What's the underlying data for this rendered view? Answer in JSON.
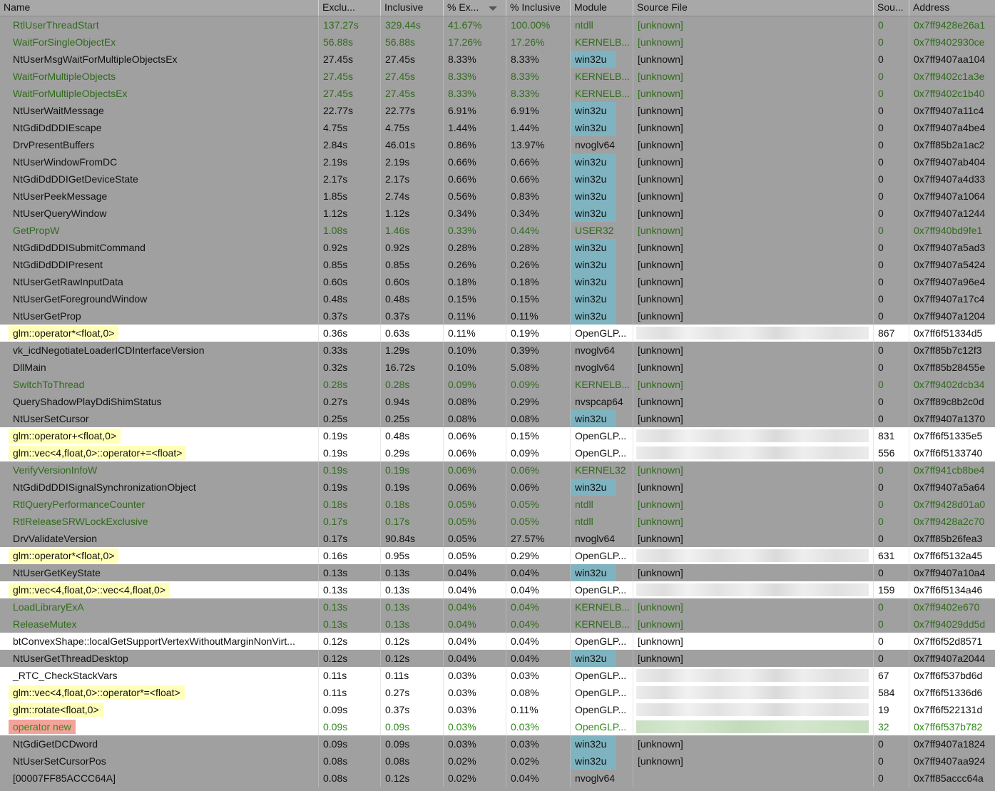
{
  "columns": [
    "Name",
    "Exclu...",
    "Inclusive",
    "% Ex...",
    "% Inclusive",
    "Module",
    "Source File",
    "Sou...",
    "Address"
  ],
  "sorted_column": "% Ex...",
  "colors": {
    "dark_row": "#a0a0a0",
    "light_row": "#ffffff",
    "green_text": "#2f6b1a",
    "yellow_highlight": "#ffffb8",
    "red_highlight": "#f3a39a",
    "module_highlight": "#7fb3c0"
  },
  "rows": [
    {
      "name": "RtlUserThreadStart",
      "excl": "137.27s",
      "incl": "329.44s",
      "pex": "41.67%",
      "pinc": "100.00%",
      "module": "ntdll",
      "src": "[unknown]",
      "sou": "0",
      "addr": "0x7ff9428e26a1",
      "green": true,
      "light": false,
      "hl": "",
      "modhl": false
    },
    {
      "name": "WaitForSingleObjectEx",
      "excl": "56.88s",
      "incl": "56.88s",
      "pex": "17.26%",
      "pinc": "17.26%",
      "module": "KERNELB...",
      "src": "[unknown]",
      "sou": "0",
      "addr": "0x7ff9402930ce",
      "green": true,
      "light": false,
      "hl": "",
      "modhl": false
    },
    {
      "name": "NtUserMsgWaitForMultipleObjectsEx",
      "excl": "27.45s",
      "incl": "27.45s",
      "pex": "8.33%",
      "pinc": "8.33%",
      "module": "win32u",
      "src": "[unknown]",
      "sou": "0",
      "addr": "0x7ff9407aa104",
      "green": false,
      "light": false,
      "hl": "",
      "modhl": true
    },
    {
      "name": "WaitForMultipleObjects",
      "excl": "27.45s",
      "incl": "27.45s",
      "pex": "8.33%",
      "pinc": "8.33%",
      "module": "KERNELB...",
      "src": "[unknown]",
      "sou": "0",
      "addr": "0x7ff9402c1a3e",
      "green": true,
      "light": false,
      "hl": "",
      "modhl": false
    },
    {
      "name": "WaitForMultipleObjectsEx",
      "excl": "27.45s",
      "incl": "27.45s",
      "pex": "8.33%",
      "pinc": "8.33%",
      "module": "KERNELB...",
      "src": "[unknown]",
      "sou": "0",
      "addr": "0x7ff9402c1b40",
      "green": true,
      "light": false,
      "hl": "",
      "modhl": false
    },
    {
      "name": "NtUserWaitMessage",
      "excl": "22.77s",
      "incl": "22.77s",
      "pex": "6.91%",
      "pinc": "6.91%",
      "module": "win32u",
      "src": "[unknown]",
      "sou": "0",
      "addr": "0x7ff9407a11c4",
      "green": false,
      "light": false,
      "hl": "",
      "modhl": true
    },
    {
      "name": "NtGdiDdDDIEscape",
      "excl": "4.75s",
      "incl": "4.75s",
      "pex": "1.44%",
      "pinc": "1.44%",
      "module": "win32u",
      "src": "[unknown]",
      "sou": "0",
      "addr": "0x7ff9407a4be4",
      "green": false,
      "light": false,
      "hl": "",
      "modhl": true
    },
    {
      "name": "DrvPresentBuffers",
      "excl": "2.84s",
      "incl": "46.01s",
      "pex": "0.86%",
      "pinc": "13.97%",
      "module": "nvoglv64",
      "src": "[unknown]",
      "sou": "0",
      "addr": "0x7ff85b2a1ac2",
      "green": false,
      "light": false,
      "hl": "",
      "modhl": false
    },
    {
      "name": "NtUserWindowFromDC",
      "excl": "2.19s",
      "incl": "2.19s",
      "pex": "0.66%",
      "pinc": "0.66%",
      "module": "win32u",
      "src": "[unknown]",
      "sou": "0",
      "addr": "0x7ff9407ab404",
      "green": false,
      "light": false,
      "hl": "",
      "modhl": true
    },
    {
      "name": "NtGdiDdDDIGetDeviceState",
      "excl": "2.17s",
      "incl": "2.17s",
      "pex": "0.66%",
      "pinc": "0.66%",
      "module": "win32u",
      "src": "[unknown]",
      "sou": "0",
      "addr": "0x7ff9407a4d33",
      "green": false,
      "light": false,
      "hl": "",
      "modhl": true
    },
    {
      "name": "NtUserPeekMessage",
      "excl": "1.85s",
      "incl": "2.74s",
      "pex": "0.56%",
      "pinc": "0.83%",
      "module": "win32u",
      "src": "[unknown]",
      "sou": "0",
      "addr": "0x7ff9407a1064",
      "green": false,
      "light": false,
      "hl": "",
      "modhl": true
    },
    {
      "name": "NtUserQueryWindow",
      "excl": "1.12s",
      "incl": "1.12s",
      "pex": "0.34%",
      "pinc": "0.34%",
      "module": "win32u",
      "src": "[unknown]",
      "sou": "0",
      "addr": "0x7ff9407a1244",
      "green": false,
      "light": false,
      "hl": "",
      "modhl": true
    },
    {
      "name": "GetPropW",
      "excl": "1.08s",
      "incl": "1.46s",
      "pex": "0.33%",
      "pinc": "0.44%",
      "module": "USER32",
      "src": "[unknown]",
      "sou": "0",
      "addr": "0x7ff940bd9fe1",
      "green": true,
      "light": false,
      "hl": "",
      "modhl": false
    },
    {
      "name": "NtGdiDdDDISubmitCommand",
      "excl": "0.92s",
      "incl": "0.92s",
      "pex": "0.28%",
      "pinc": "0.28%",
      "module": "win32u",
      "src": "[unknown]",
      "sou": "0",
      "addr": "0x7ff9407a5ad3",
      "green": false,
      "light": false,
      "hl": "",
      "modhl": true
    },
    {
      "name": "NtGdiDdDDIPresent",
      "excl": "0.85s",
      "incl": "0.85s",
      "pex": "0.26%",
      "pinc": "0.26%",
      "module": "win32u",
      "src": "[unknown]",
      "sou": "0",
      "addr": "0x7ff9407a5424",
      "green": false,
      "light": false,
      "hl": "",
      "modhl": true
    },
    {
      "name": "NtUserGetRawInputData",
      "excl": "0.60s",
      "incl": "0.60s",
      "pex": "0.18%",
      "pinc": "0.18%",
      "module": "win32u",
      "src": "[unknown]",
      "sou": "0",
      "addr": "0x7ff9407a96e4",
      "green": false,
      "light": false,
      "hl": "",
      "modhl": true
    },
    {
      "name": "NtUserGetForegroundWindow",
      "excl": "0.48s",
      "incl": "0.48s",
      "pex": "0.15%",
      "pinc": "0.15%",
      "module": "win32u",
      "src": "[unknown]",
      "sou": "0",
      "addr": "0x7ff9407a17c4",
      "green": false,
      "light": false,
      "hl": "",
      "modhl": true
    },
    {
      "name": "NtUserGetProp",
      "excl": "0.37s",
      "incl": "0.37s",
      "pex": "0.11%",
      "pinc": "0.11%",
      "module": "win32u",
      "src": "[unknown]",
      "sou": "0",
      "addr": "0x7ff9407a1204",
      "green": false,
      "light": false,
      "hl": "",
      "modhl": true
    },
    {
      "name": "glm::operator*<float,0>",
      "excl": "0.36s",
      "incl": "0.63s",
      "pex": "0.11%",
      "pinc": "0.19%",
      "module": "OpenGLP...",
      "src": "",
      "sou": "867",
      "addr": "0x7ff6f51334d5",
      "green": false,
      "light": true,
      "hl": "yellow",
      "modhl": false,
      "blur": "gray"
    },
    {
      "name": "vk_icdNegotiateLoaderICDInterfaceVersion",
      "excl": "0.33s",
      "incl": "1.29s",
      "pex": "0.10%",
      "pinc": "0.39%",
      "module": "nvoglv64",
      "src": "[unknown]",
      "sou": "0",
      "addr": "0x7ff85b7c12f3",
      "green": false,
      "light": false,
      "hl": "",
      "modhl": false
    },
    {
      "name": "DllMain",
      "excl": "0.32s",
      "incl": "16.72s",
      "pex": "0.10%",
      "pinc": "5.08%",
      "module": "nvoglv64",
      "src": "[unknown]",
      "sou": "0",
      "addr": "0x7ff85b28455e",
      "green": false,
      "light": false,
      "hl": "",
      "modhl": false
    },
    {
      "name": "SwitchToThread",
      "excl": "0.28s",
      "incl": "0.28s",
      "pex": "0.09%",
      "pinc": "0.09%",
      "module": "KERNELB...",
      "src": "[unknown]",
      "sou": "0",
      "addr": "0x7ff9402dcb34",
      "green": true,
      "light": false,
      "hl": "",
      "modhl": false
    },
    {
      "name": "QueryShadowPlayDdiShimStatus",
      "excl": "0.27s",
      "incl": "0.94s",
      "pex": "0.08%",
      "pinc": "0.29%",
      "module": "nvspcap64",
      "src": "[unknown]",
      "sou": "0",
      "addr": "0x7ff89c8b2c0d",
      "green": false,
      "light": false,
      "hl": "",
      "modhl": false
    },
    {
      "name": "NtUserSetCursor",
      "excl": "0.25s",
      "incl": "0.25s",
      "pex": "0.08%",
      "pinc": "0.08%",
      "module": "win32u",
      "src": "[unknown]",
      "sou": "0",
      "addr": "0x7ff9407a1370",
      "green": false,
      "light": false,
      "hl": "",
      "modhl": true
    },
    {
      "name": "glm::operator+<float,0>",
      "excl": "0.19s",
      "incl": "0.48s",
      "pex": "0.06%",
      "pinc": "0.15%",
      "module": "OpenGLP...",
      "src": "",
      "sou": "831",
      "addr": "0x7ff6f51335e5",
      "green": false,
      "light": true,
      "hl": "yellow",
      "modhl": false,
      "blur": "gray"
    },
    {
      "name": "glm::vec<4,float,0>::operator+=<float>",
      "excl": "0.19s",
      "incl": "0.29s",
      "pex": "0.06%",
      "pinc": "0.09%",
      "module": "OpenGLP...",
      "src": "",
      "sou": "556",
      "addr": "0x7ff6f5133740",
      "green": false,
      "light": true,
      "hl": "yellow",
      "modhl": false,
      "blur": "gray"
    },
    {
      "name": "VerifyVersionInfoW",
      "excl": "0.19s",
      "incl": "0.19s",
      "pex": "0.06%",
      "pinc": "0.06%",
      "module": "KERNEL32",
      "src": "[unknown]",
      "sou": "0",
      "addr": "0x7ff941cb8be4",
      "green": true,
      "light": false,
      "hl": "",
      "modhl": false
    },
    {
      "name": "NtGdiDdDDISignalSynchronizationObject",
      "excl": "0.19s",
      "incl": "0.19s",
      "pex": "0.06%",
      "pinc": "0.06%",
      "module": "win32u",
      "src": "[unknown]",
      "sou": "0",
      "addr": "0x7ff9407a5a64",
      "green": false,
      "light": false,
      "hl": "",
      "modhl": true
    },
    {
      "name": "RtlQueryPerformanceCounter",
      "excl": "0.18s",
      "incl": "0.18s",
      "pex": "0.05%",
      "pinc": "0.05%",
      "module": "ntdll",
      "src": "[unknown]",
      "sou": "0",
      "addr": "0x7ff9428d01a0",
      "green": true,
      "light": false,
      "hl": "",
      "modhl": false
    },
    {
      "name": "RtlReleaseSRWLockExclusive",
      "excl": "0.17s",
      "incl": "0.17s",
      "pex": "0.05%",
      "pinc": "0.05%",
      "module": "ntdll",
      "src": "[unknown]",
      "sou": "0",
      "addr": "0x7ff9428a2c70",
      "green": true,
      "light": false,
      "hl": "",
      "modhl": false
    },
    {
      "name": "DrvValidateVersion",
      "excl": "0.17s",
      "incl": "90.84s",
      "pex": "0.05%",
      "pinc": "27.57%",
      "module": "nvoglv64",
      "src": "[unknown]",
      "sou": "0",
      "addr": "0x7ff85b26fea3",
      "green": false,
      "light": false,
      "hl": "",
      "modhl": false
    },
    {
      "name": "glm::operator*<float,0>",
      "excl": "0.16s",
      "incl": "0.95s",
      "pex": "0.05%",
      "pinc": "0.29%",
      "module": "OpenGLP...",
      "src": "",
      "sou": "631",
      "addr": "0x7ff6f5132a45",
      "green": false,
      "light": true,
      "hl": "yellow",
      "modhl": false,
      "blur": "gray"
    },
    {
      "name": "NtUserGetKeyState",
      "excl": "0.13s",
      "incl": "0.13s",
      "pex": "0.04%",
      "pinc": "0.04%",
      "module": "win32u",
      "src": "[unknown]",
      "sou": "0",
      "addr": "0x7ff9407a10a4",
      "green": false,
      "light": false,
      "hl": "",
      "modhl": true
    },
    {
      "name": "glm::vec<4,float,0>::vec<4,float,0>",
      "excl": "0.13s",
      "incl": "0.13s",
      "pex": "0.04%",
      "pinc": "0.04%",
      "module": "OpenGLP...",
      "src": "",
      "sou": "159",
      "addr": "0x7ff6f5134a46",
      "green": false,
      "light": true,
      "hl": "yellow",
      "modhl": false,
      "blur": "gray"
    },
    {
      "name": "LoadLibraryExA",
      "excl": "0.13s",
      "incl": "0.13s",
      "pex": "0.04%",
      "pinc": "0.04%",
      "module": "KERNELB...",
      "src": "[unknown]",
      "sou": "0",
      "addr": "0x7ff9402e670",
      "green": true,
      "light": false,
      "hl": "",
      "modhl": false
    },
    {
      "name": "ReleaseMutex",
      "excl": "0.13s",
      "incl": "0.13s",
      "pex": "0.04%",
      "pinc": "0.04%",
      "module": "KERNELB...",
      "src": "[unknown]",
      "sou": "0",
      "addr": "0x7ff94029dd5d",
      "green": true,
      "light": false,
      "hl": "",
      "modhl": false
    },
    {
      "name": "btConvexShape::localGetSupportVertexWithoutMarginNonVirt...",
      "excl": "0.12s",
      "incl": "0.12s",
      "pex": "0.04%",
      "pinc": "0.04%",
      "module": "OpenGLP...",
      "src": "[unknown]",
      "sou": "0",
      "addr": "0x7ff6f52d8571",
      "green": false,
      "light": true,
      "hl": "",
      "modhl": false
    },
    {
      "name": "NtUserGetThreadDesktop",
      "excl": "0.12s",
      "incl": "0.12s",
      "pex": "0.04%",
      "pinc": "0.04%",
      "module": "win32u",
      "src": "[unknown]",
      "sou": "0",
      "addr": "0x7ff9407a2044",
      "green": false,
      "light": false,
      "hl": "",
      "modhl": true
    },
    {
      "name": "_RTC_CheckStackVars",
      "excl": "0.11s",
      "incl": "0.11s",
      "pex": "0.03%",
      "pinc": "0.03%",
      "module": "OpenGLP...",
      "src": "",
      "sou": "67",
      "addr": "0x7ff6f537bd6d",
      "green": false,
      "light": true,
      "hl": "",
      "modhl": false,
      "blur": "gray"
    },
    {
      "name": "glm::vec<4,float,0>::operator*=<float>",
      "excl": "0.11s",
      "incl": "0.27s",
      "pex": "0.03%",
      "pinc": "0.08%",
      "module": "OpenGLP...",
      "src": "",
      "sou": "584",
      "addr": "0x7ff6f51336d6",
      "green": false,
      "light": true,
      "hl": "yellow",
      "modhl": false,
      "blur": "gray"
    },
    {
      "name": "glm::rotate<float,0>",
      "excl": "0.09s",
      "incl": "0.37s",
      "pex": "0.03%",
      "pinc": "0.11%",
      "module": "OpenGLP...",
      "src": "",
      "sou": "19",
      "addr": "0x7ff6f522131d",
      "green": false,
      "light": true,
      "hl": "yellow",
      "modhl": false,
      "blur": "gray"
    },
    {
      "name": "operator new",
      "excl": "0.09s",
      "incl": "0.09s",
      "pex": "0.03%",
      "pinc": "0.03%",
      "module": "OpenGLP...",
      "src": "",
      "sou": "32",
      "addr": "0x7ff6f537b782",
      "green": true,
      "light": true,
      "hl": "red",
      "modhl": false,
      "blur": "green"
    },
    {
      "name": "NtGdiGetDCDword",
      "excl": "0.09s",
      "incl": "0.09s",
      "pex": "0.03%",
      "pinc": "0.03%",
      "module": "win32u",
      "src": "[unknown]",
      "sou": "0",
      "addr": "0x7ff9407a1824",
      "green": false,
      "light": false,
      "hl": "",
      "modhl": true
    },
    {
      "name": "NtUserSetCursorPos",
      "excl": "0.08s",
      "incl": "0.08s",
      "pex": "0.02%",
      "pinc": "0.02%",
      "module": "win32u",
      "src": "[unknown]",
      "sou": "0",
      "addr": "0x7ff9407aa924",
      "green": false,
      "light": false,
      "hl": "",
      "modhl": true
    },
    {
      "name": "[00007FF85ACCC64A]",
      "excl": "0.08s",
      "incl": "0.12s",
      "pex": "0.02%",
      "pinc": "0.04%",
      "module": "nvoglv64",
      "src": "",
      "sou": "0",
      "addr": "0x7ff85accc64a",
      "green": false,
      "light": false,
      "hl": "",
      "modhl": false
    }
  ]
}
